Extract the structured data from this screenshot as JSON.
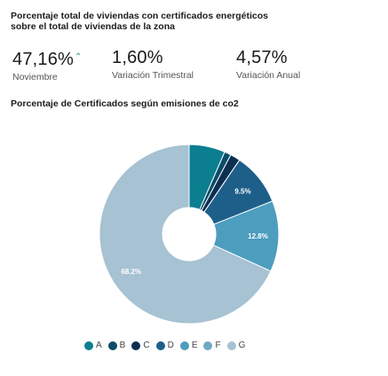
{
  "header": {
    "title": "Porcentaje total de viviendas con certificados energéticos sobre el total de viviendas de la zona"
  },
  "stats": [
    {
      "value": "47,16%",
      "arrow": "⌃",
      "label": "Noviembre"
    },
    {
      "value": "1,60%",
      "label": "Variación Trimestral"
    },
    {
      "value": "4,57%",
      "label": "Variación Anual"
    }
  ],
  "chart_data": {
    "type": "pie",
    "title": "Porcentaje de Certificados según emisiones de co2",
    "donut": true,
    "categories": [
      "A",
      "B",
      "C",
      "D",
      "E",
      "F",
      "G"
    ],
    "values": [
      6.5,
      1.2,
      1.8,
      9.5,
      12.8,
      0,
      68.2
    ],
    "data_labels": [
      "",
      "",
      "",
      "9.5%",
      "12.8%",
      "",
      "68.2%"
    ],
    "colors": [
      "#0b7e90",
      "#0a4e66",
      "#0d2f52",
      "#1e5f8a",
      "#4d9dbe",
      "#6fa9c4",
      "#a6c2d3"
    ],
    "legend_position": "bottom"
  }
}
